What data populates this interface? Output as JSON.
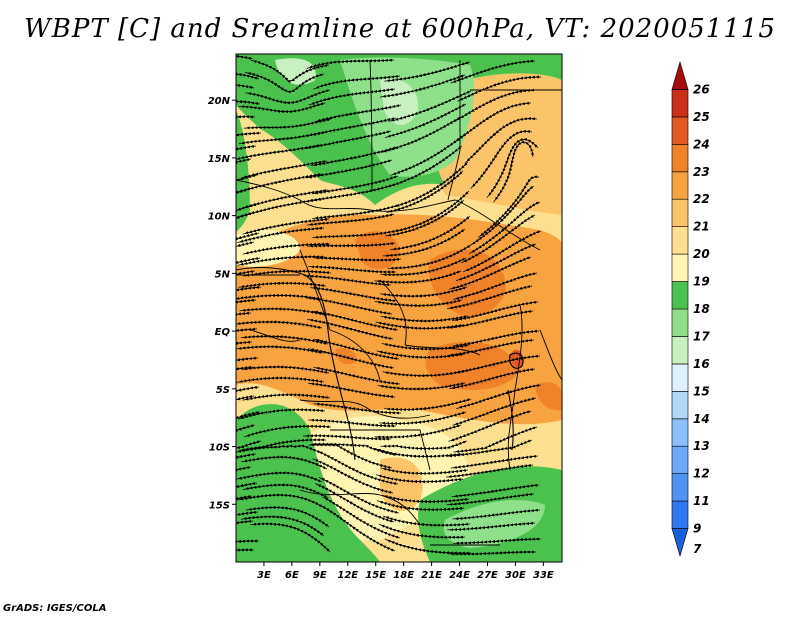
{
  "title": "WBPT [C] and Sreamline at 600hPa, VT: 2020051115",
  "footer": "GrADS: IGES/COLA",
  "map": {
    "region": "Central Africa",
    "lon_range": [
      0,
      35
    ],
    "lat_range": [
      -20,
      24
    ],
    "x_ticks": [
      {
        "label": "3E",
        "lon": 3
      },
      {
        "label": "6E",
        "lon": 6
      },
      {
        "label": "9E",
        "lon": 9
      },
      {
        "label": "12E",
        "lon": 12
      },
      {
        "label": "15E",
        "lon": 15
      },
      {
        "label": "18E",
        "lon": 18
      },
      {
        "label": "21E",
        "lon": 21
      },
      {
        "label": "24E",
        "lon": 24
      },
      {
        "label": "27E",
        "lon": 27
      },
      {
        "label": "30E",
        "lon": 30
      },
      {
        "label": "33E",
        "lon": 33
      }
    ],
    "y_ticks": [
      {
        "label": "20N",
        "lat": 20
      },
      {
        "label": "15N",
        "lat": 15
      },
      {
        "label": "10N",
        "lat": 10
      },
      {
        "label": "5N",
        "lat": 5
      },
      {
        "label": "EQ",
        "lat": 0
      },
      {
        "label": "5S",
        "lat": -5
      },
      {
        "label": "10S",
        "lat": -10
      },
      {
        "label": "15S",
        "lat": -15
      }
    ]
  },
  "colorbar": {
    "levels": [
      "7",
      "9",
      "11",
      "12",
      "13",
      "14",
      "15",
      "16",
      "17",
      "18",
      "19",
      "20",
      "21",
      "22",
      "23",
      "24",
      "25",
      "26"
    ],
    "colors": [
      "#1c5fdc",
      "#2f78ef",
      "#4d94f5",
      "#6aa9f8",
      "#8dc0fb",
      "#b2d6fc",
      "#def0fb",
      "#c9f0c0",
      "#8fe08a",
      "#4cc24e",
      "#fff5b2",
      "#fde08f",
      "#fbc468",
      "#f7a340",
      "#f0822a",
      "#e25a22",
      "#cc2f18",
      "#a60d0d"
    ]
  },
  "colors": {
    "green": "#4cc24e",
    "light_green": "#8fe08a",
    "pale_green": "#c9f0c0",
    "yellow": "#fff5b2",
    "light_orange": "#fde08f",
    "orange": "#fbc468",
    "dark_orange": "#f7a340",
    "red_orange": "#f0822a"
  }
}
